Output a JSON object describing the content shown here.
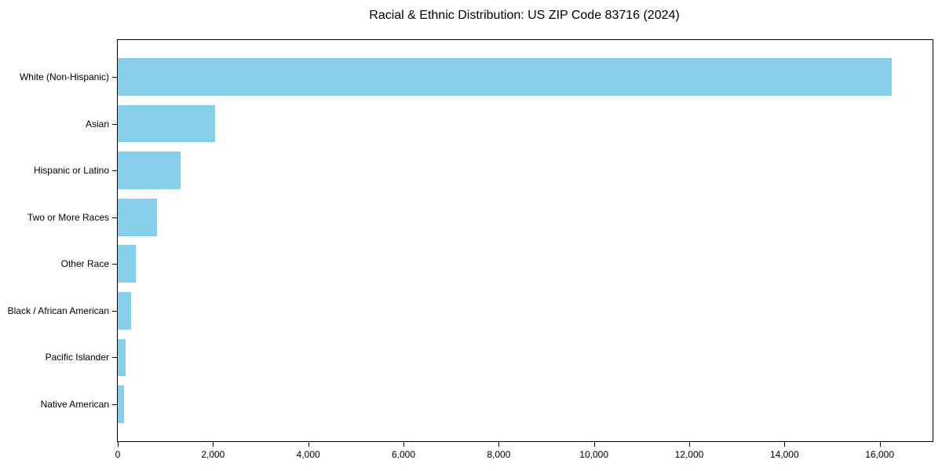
{
  "chart_data": {
    "type": "bar",
    "orientation": "horizontal",
    "title": "Racial & Ethnic Distribution: US ZIP Code 83716 (2024)",
    "categories": [
      "White (Non-Hispanic)",
      "Asian",
      "Hispanic or Latino",
      "Two or More Races",
      "Other Race",
      "Black / African American",
      "Pacific Islander",
      "Native American"
    ],
    "values": [
      16250,
      2050,
      1320,
      820,
      380,
      280,
      165,
      130
    ],
    "xlabel": "",
    "ylabel": "",
    "xlim": [
      0,
      17110
    ],
    "xticks": [
      0,
      2000,
      4000,
      6000,
      8000,
      10000,
      12000,
      14000,
      16000
    ],
    "xtick_labels": [
      "0",
      "2,000",
      "4,000",
      "6,000",
      "8,000",
      "10,000",
      "12,000",
      "14,000",
      "16,000"
    ],
    "bar_color": "#87ceeb",
    "axis_color": "#000000",
    "grid": false,
    "legend": null
  }
}
